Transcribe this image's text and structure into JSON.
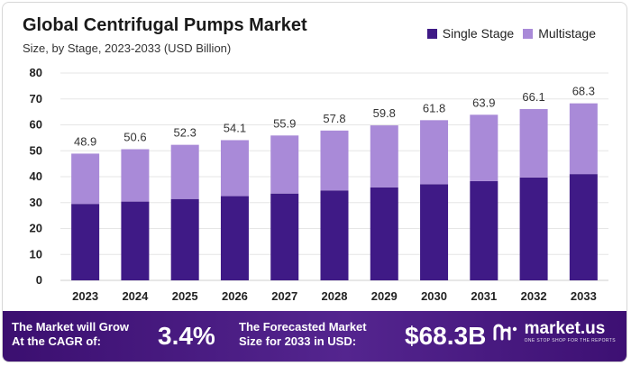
{
  "header": {
    "title": "Global Centrifugal Pumps Market",
    "subtitle": "Size, by Stage, 2023-2033 (USD Billion)"
  },
  "legend": {
    "items": [
      {
        "label": "Single Stage",
        "color": "#3f1a86"
      },
      {
        "label": "Multistage",
        "color": "#a98ad8"
      }
    ]
  },
  "chart_data": {
    "type": "bar",
    "stacked": true,
    "categories": [
      "2023",
      "2024",
      "2025",
      "2026",
      "2027",
      "2028",
      "2029",
      "2030",
      "2031",
      "2032",
      "2033"
    ],
    "series": [
      {
        "name": "Single Stage",
        "color": "#3f1a86",
        "values": [
          29.5,
          30.4,
          31.4,
          32.5,
          33.5,
          34.7,
          35.9,
          37.1,
          38.3,
          39.7,
          41.0
        ]
      },
      {
        "name": "Multistage",
        "color": "#a98ad8",
        "values": [
          19.4,
          20.2,
          20.9,
          21.6,
          22.4,
          23.1,
          23.9,
          24.7,
          25.6,
          26.4,
          27.3
        ]
      }
    ],
    "totals": [
      "48.9",
      "50.6",
      "52.3",
      "54.1",
      "55.9",
      "57.8",
      "59.8",
      "61.8",
      "63.9",
      "66.1",
      "68.3"
    ],
    "yticks": [
      "0",
      "10",
      "20",
      "30",
      "40",
      "50",
      "60",
      "70",
      "80"
    ],
    "ylim": [
      0,
      80
    ],
    "grid": true,
    "legend_position": "top-right"
  },
  "footer": {
    "cagr_label_1": "The Market will Grow",
    "cagr_label_2": "At the CAGR of:",
    "cagr_value": "3.4%",
    "forecast_label_1": "The Forecasted Market",
    "forecast_label_2": "Size for 2033 in USD:",
    "forecast_value": "$68.3B",
    "brand": "market.us",
    "brand_tagline": "ONE STOP SHOP FOR THE REPORTS"
  }
}
